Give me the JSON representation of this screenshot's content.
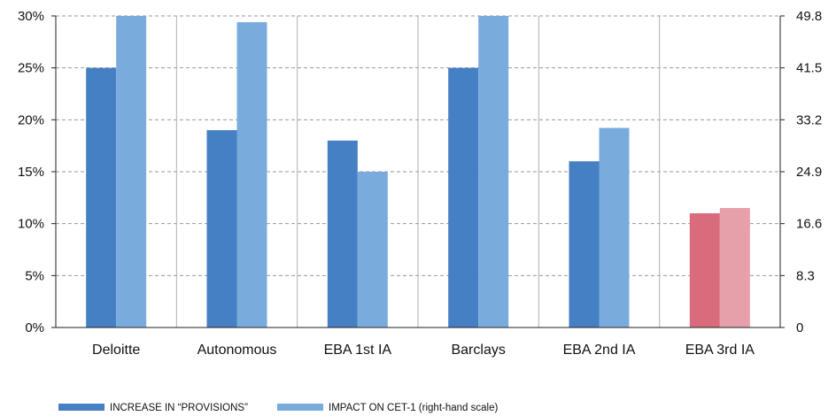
{
  "chart_data": {
    "type": "bar",
    "categories": [
      "Deloitte",
      "Autonomous",
      "EBA 1st IA",
      "Barclays",
      "EBA 2nd IA",
      "EBA 3rd IA"
    ],
    "series": [
      {
        "name": "INCREASE IN “PROVISIONS”",
        "axis": "left",
        "values": [
          25,
          19,
          18,
          25,
          16,
          11
        ],
        "color": "#4580c4"
      },
      {
        "name": "IMPACT ON CET-1 (right-hand scale)",
        "axis": "right",
        "values": [
          49.8,
          48.8,
          24.9,
          49.8,
          31.9,
          19.1
        ],
        "color": "#79acdd"
      }
    ],
    "highlight": {
      "category_index": 5,
      "colors": [
        "#d96b7c",
        "#e6a0aa"
      ]
    },
    "y_left": {
      "ylim": [
        0,
        30
      ],
      "ticks": [
        "0%",
        "5%",
        "10%",
        "15%",
        "20%",
        "25%",
        "30%"
      ]
    },
    "y_right": {
      "ylim": [
        0,
        49.8
      ],
      "ticks": [
        "0",
        "8.3",
        "16.6",
        "24.9",
        "33.2",
        "41.5",
        "49.8"
      ]
    },
    "grid": "horizontal-dashed",
    "legend_position": "bottom-left"
  }
}
